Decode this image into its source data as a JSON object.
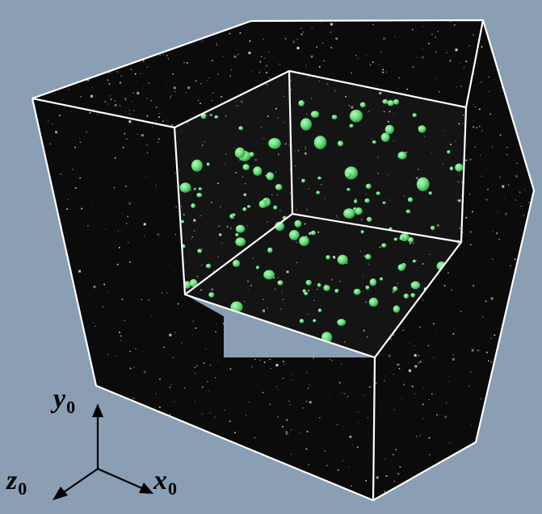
{
  "figure": {
    "background_color": "#8a9eb4",
    "volume_color": "#0b0b0b",
    "edge_color": "#ffffff",
    "speckle_color": "#e8e8e8",
    "particle_color": "#66e07a",
    "particle_shade_color": "#2f9a45"
  },
  "axes": {
    "y": {
      "letter": "y",
      "subscript": "0"
    },
    "z": {
      "letter": "z",
      "subscript": "0"
    },
    "x": {
      "letter": "x",
      "subscript": "0"
    },
    "arrow_color": "#000000"
  }
}
